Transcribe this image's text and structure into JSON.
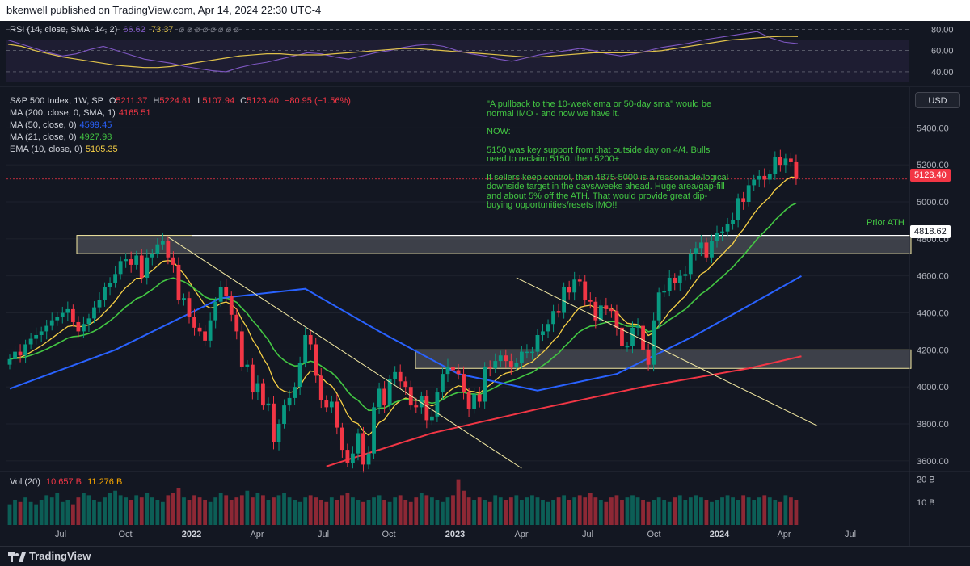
{
  "header": {
    "text": "bkenwell published on TradingView.com, Apr 14, 2024 22:30 UTC-4"
  },
  "rsi_legend": {
    "label": "RSI (14, close, SMA, 14, 2)",
    "rsi_value": "66.62",
    "sma_value": "73.37",
    "extra": "⌀ ⌀ ⌀ ⌀ ⌀ ⌀ ⌀ ⌀"
  },
  "main_legend": {
    "symbol": "S&P 500 Index, 1W, SP",
    "o_label": "O",
    "o": "5211.37",
    "h_label": "H",
    "h": "5224.81",
    "l_label": "L",
    "l": "5107.94",
    "c_label": "C",
    "c": "5123.40",
    "chg": "−80.95 (−1.56%)",
    "ma200_label": "MA (200, close, 0, SMA, 1)",
    "ma200": "4165.51",
    "ma50_label": "MA (50, close, 0)",
    "ma50": "4599.45",
    "ma21_label": "MA (21, close, 0)",
    "ma21": "4927.98",
    "ema10_label": "EMA (10, close, 0)",
    "ema10": "5105.35"
  },
  "vol_legend": {
    "label": "Vol (20)",
    "v1": "10.657 B",
    "v2": "11.276 B"
  },
  "annotation": {
    "p1": "\"A pullback to the 10-week ema or 50-day sma\" would be normal IMO - and now we have it.",
    "p2": "NOW:",
    "p3": "5150 was key support from that outside day on 4/4. Bulls need to reclaim 5150, then 5200+",
    "p4": "If sellers keep control, then 4875-5000 is a reasonable/logical downside target in the days/weeks ahead. Huge area/gap-fill and about 5% off the ATH. That would provide great dip-buying opportunities/resets IMO!!"
  },
  "usd_button": "USD",
  "price_tag": "5123.40",
  "ath_tag": "4818.62",
  "prior_ath_label": "Prior ATH",
  "footer": {
    "logo_text": "TradingView"
  },
  "colors": {
    "up": "#089981",
    "down": "#f23645",
    "ma200": "#f23645",
    "ma50": "#2962ff",
    "ma21": "#43c743",
    "ema10": "#f7d046",
    "rsi": "#7e57c2",
    "rsi_sma": "#e0c24a",
    "annotation": "#43c743"
  },
  "chart_data": {
    "type": "candlestick",
    "interval": "1W",
    "symbol": "S&P 500 Index",
    "x_ticks": [
      "Jul",
      "Oct",
      "2022",
      "Apr",
      "Jul",
      "Oct",
      "2023",
      "Apr",
      "Jul",
      "Oct",
      "2024",
      "Apr",
      "Jul"
    ],
    "y_ticks": [
      "3600.00",
      "3800.00",
      "4000.00",
      "4200.00",
      "4400.00",
      "4600.00",
      "4800.00",
      "5000.00",
      "5200.00",
      "5400.00"
    ],
    "ylim": [
      3560,
      5480
    ],
    "rsi_ticks": [
      "40.00",
      "60.00",
      "80.00"
    ],
    "rsi_ylim": [
      30,
      85
    ],
    "vol_ticks": [
      "10 B",
      "20 B"
    ],
    "closes": [
      4150,
      4190,
      4170,
      4230,
      4260,
      4280,
      4300,
      4330,
      4360,
      4380,
      4400,
      4420,
      4350,
      4300,
      4340,
      4370,
      4430,
      4470,
      4540,
      4560,
      4610,
      4680,
      4690,
      4660,
      4710,
      4590,
      4700,
      4720,
      4770,
      4790,
      4700,
      4660,
      4470,
      4480,
      4380,
      4320,
      4300,
      4250,
      4360,
      4460,
      4540,
      4490,
      4390,
      4300,
      4110,
      4120,
      3970,
      4020,
      3900,
      3910,
      3700,
      3800,
      3900,
      3940,
      4000,
      4130,
      4280,
      4230,
      4060,
      3930,
      3890,
      3920,
      3780,
      3660,
      3590,
      3640,
      3750,
      3580,
      3640,
      3890,
      3990,
      3900,
      4040,
      4080,
      4030,
      4000,
      3900,
      3890,
      3950,
      3820,
      3840,
      3970,
      4070,
      4110,
      4090,
      4070,
      3970,
      3880,
      3960,
      3920,
      4110,
      4100,
      4140,
      4170,
      4140,
      4110,
      4130,
      4190,
      4190,
      4190,
      4280,
      4300,
      4340,
      4410,
      4400,
      4540,
      4510,
      4580,
      4570,
      4470,
      4460,
      4360,
      4440,
      4420,
      4410,
      4320,
      4220,
      4220,
      4320,
      4330,
      4200,
      4120,
      4360,
      4510,
      4520,
      4590,
      4560,
      4600,
      4610,
      4720,
      4750,
      4780,
      4700,
      4790,
      4830,
      4840,
      4880,
      4900,
      5020,
      5000,
      5090,
      5120,
      5140,
      5120,
      5150,
      5240,
      5200,
      5234,
      5214,
      5123
    ],
    "ma50_points": [
      [
        0,
        3990
      ],
      [
        20,
        4200
      ],
      [
        40,
        4480
      ],
      [
        56,
        4530
      ],
      [
        70,
        4300
      ],
      [
        85,
        4070
      ],
      [
        100,
        3980
      ],
      [
        115,
        4070
      ],
      [
        130,
        4280
      ],
      [
        150,
        4599
      ]
    ],
    "ma200_points": [
      [
        60,
        3570
      ],
      [
        80,
        3750
      ],
      [
        100,
        3880
      ],
      [
        120,
        4000
      ],
      [
        140,
        4100
      ],
      [
        150,
        4165.51
      ]
    ],
    "ath": 4818.62,
    "last_close": 5123.4,
    "zones": [
      {
        "y1": 4720,
        "y2": 4818.62
      },
      {
        "y1": 4100,
        "y2": 4200
      }
    ],
    "trendlines": [
      [
        [
          30,
          4810
        ],
        [
          97,
          3560
        ]
      ],
      [
        [
          96,
          4590
        ],
        [
          153,
          3790
        ]
      ]
    ],
    "rsi_values": [
      70,
      66,
      62,
      58,
      55,
      57,
      61,
      64,
      60,
      56,
      52,
      50,
      48,
      45,
      43,
      41,
      40,
      44,
      47,
      49,
      52,
      55,
      58,
      57,
      54,
      52,
      55,
      58,
      60,
      63,
      65,
      66,
      64,
      60,
      57,
      55,
      52,
      50,
      53,
      56,
      58,
      60,
      62,
      60,
      57,
      55,
      57,
      60,
      63,
      65,
      67,
      70,
      72,
      74,
      76,
      78,
      72,
      68,
      66.62
    ],
    "rsi_sma": [
      66,
      64,
      60,
      57,
      54,
      52,
      50,
      48,
      46,
      45,
      44,
      44,
      45,
      47,
      49,
      51,
      53,
      55,
      56,
      57,
      57,
      56,
      56,
      56,
      57,
      58,
      59,
      60,
      61,
      62,
      62,
      61,
      60,
      59,
      58,
      57,
      56,
      55,
      54,
      54,
      55,
      56,
      57,
      58,
      58,
      58,
      58,
      59,
      60,
      62,
      64,
      66,
      68,
      70,
      71,
      72,
      73,
      73.5,
      73.37
    ],
    "volumes": [
      9,
      11,
      10,
      12,
      10,
      9,
      11,
      13,
      12,
      14,
      10,
      11,
      9,
      12,
      14,
      13,
      11,
      10,
      12,
      14,
      15,
      13,
      12,
      11,
      13,
      12,
      14,
      12,
      11,
      10,
      13,
      14,
      16,
      12,
      11,
      13,
      12,
      11,
      10,
      12,
      14,
      13,
      11,
      12,
      13,
      15,
      12,
      14,
      13,
      11,
      12,
      13,
      14,
      12,
      11,
      10,
      12,
      13,
      12,
      11,
      10,
      12,
      11,
      13,
      14,
      12,
      11,
      10,
      11,
      12,
      13,
      11,
      10,
      12,
      13,
      11,
      10,
      12,
      14,
      13,
      12,
      11,
      10,
      12,
      13,
      20,
      15,
      12,
      11,
      12,
      11,
      10,
      13,
      12,
      11,
      12,
      13,
      11,
      12,
      13,
      12,
      11,
      10,
      11,
      12,
      13,
      11,
      12,
      13,
      12,
      14,
      12,
      11,
      10,
      12,
      13,
      11,
      12,
      13,
      12,
      11,
      10,
      11,
      12,
      11,
      10,
      12,
      13,
      11,
      12,
      13,
      12,
      11,
      10,
      11,
      12,
      13,
      12,
      11,
      13,
      12,
      11,
      12,
      13,
      12,
      11,
      10,
      13,
      12,
      11
    ]
  }
}
